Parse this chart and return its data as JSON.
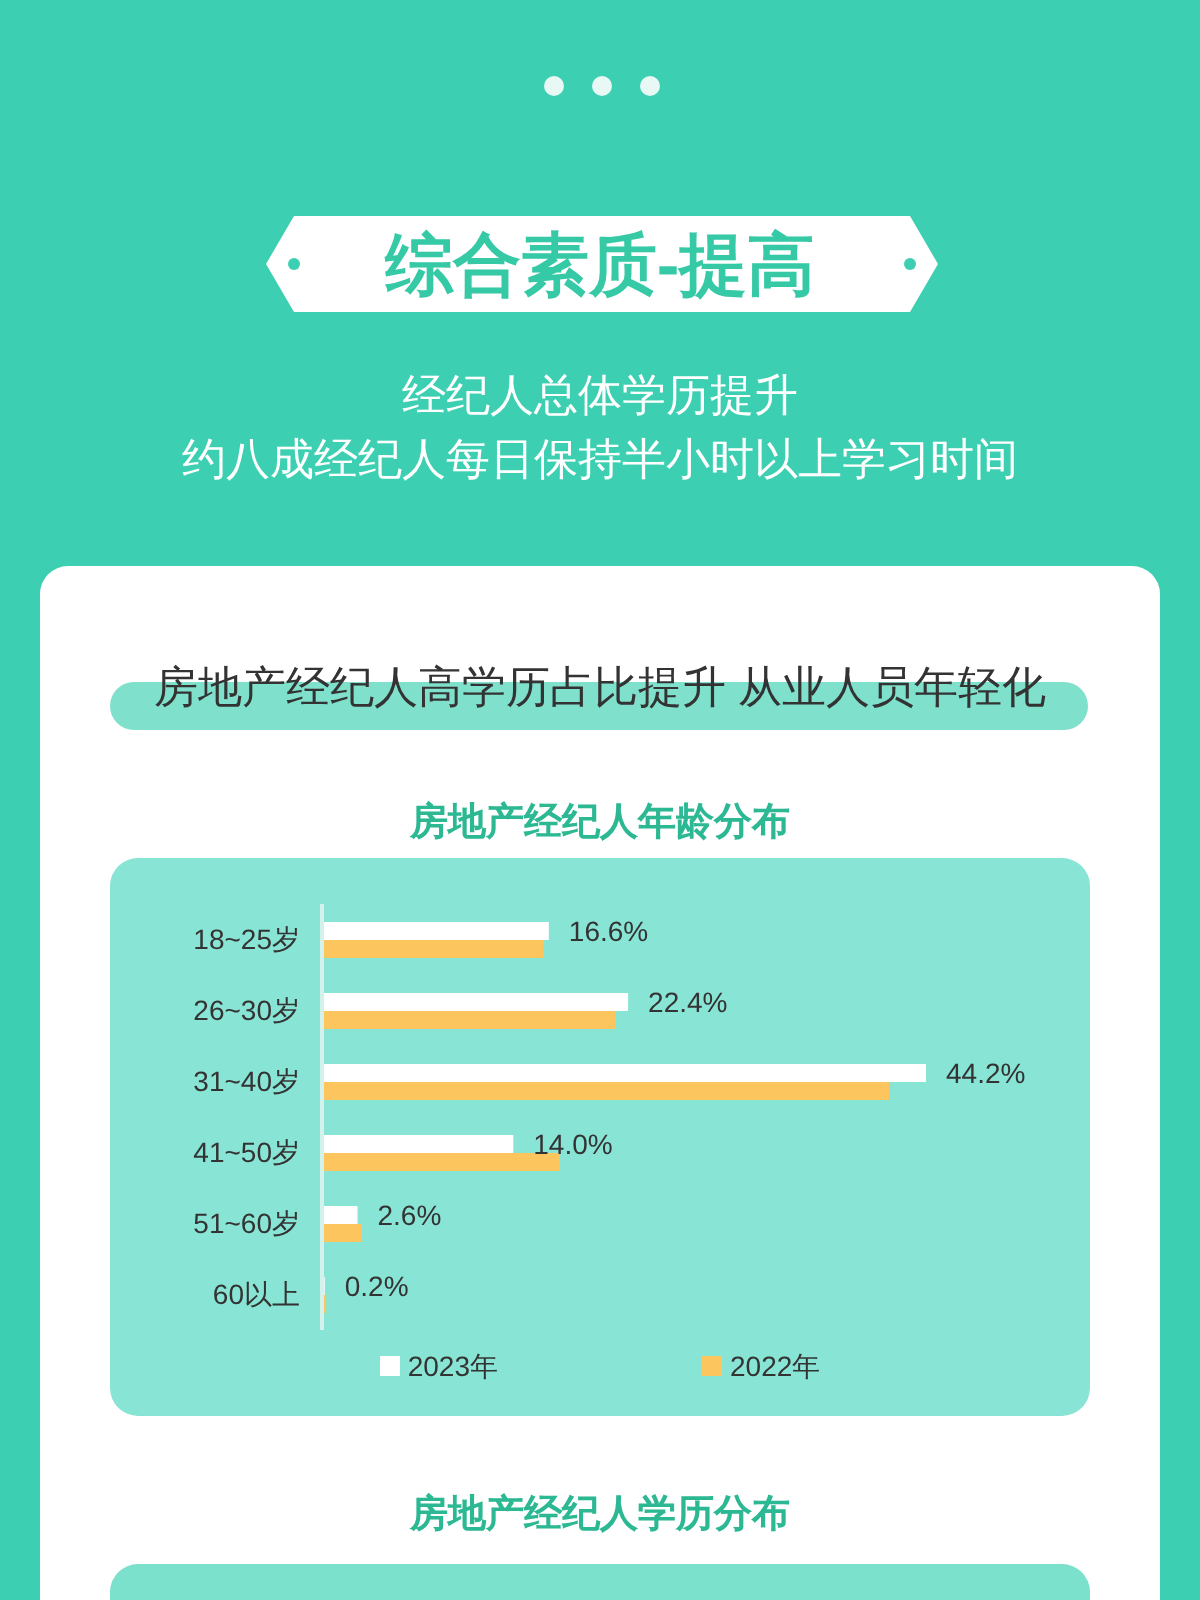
{
  "chart_data": {
    "type": "bar",
    "orientation": "horizontal",
    "title": "房地产经纪人年龄分布",
    "annotations": [
      "综合素质-提高",
      "经纪人总体学历提升",
      "约八成经纪人每日保持半小时以上学习时间",
      "房地产经纪人高学历占比提升 从业人员年轻化",
      "房地产经纪人学历分布"
    ],
    "categories": [
      "18~25岁",
      "26~30岁",
      "31~40岁",
      "41~50岁",
      "51~60岁",
      "60以上"
    ],
    "series": [
      {
        "name": "2023年",
        "color": "#ffffff",
        "values": [
          16.6,
          22.4,
          44.2,
          14.0,
          2.6,
          0.2
        ],
        "value_labels": [
          "16.6%",
          "22.4%",
          "44.2%",
          "14.0%",
          "2.6%",
          "0.2%"
        ]
      },
      {
        "name": "2022年",
        "color": "#fcc55d",
        "values": [
          16.2,
          21.5,
          41.5,
          17.4,
          2.9,
          0.3
        ]
      }
    ],
    "legend": "bottom",
    "tick_labels": "y"
  }
}
